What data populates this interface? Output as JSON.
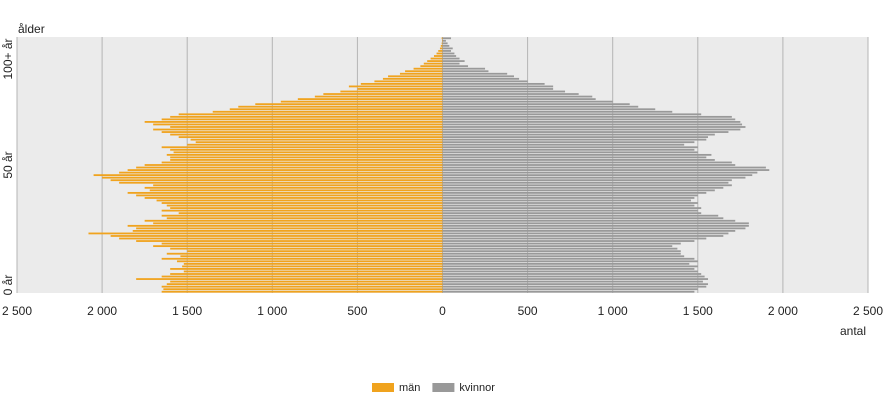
{
  "chart_data": {
    "type": "pyramid",
    "y_label": "ålder",
    "x_label": "antal",
    "categories": [
      "0 år",
      null,
      null,
      null,
      null,
      null,
      null,
      null,
      null,
      null,
      null,
      null,
      null,
      null,
      null,
      null,
      null,
      null,
      null,
      null,
      null,
      null,
      null,
      null,
      null,
      null,
      null,
      null,
      null,
      null,
      null,
      null,
      null,
      null,
      null,
      null,
      null,
      null,
      null,
      null,
      null,
      null,
      null,
      null,
      null,
      null,
      null,
      null,
      null,
      null,
      "50 år",
      null,
      null,
      null,
      null,
      null,
      null,
      null,
      null,
      null,
      null,
      null,
      null,
      null,
      null,
      null,
      null,
      null,
      null,
      null,
      null,
      null,
      null,
      null,
      null,
      null,
      null,
      null,
      null,
      null,
      null,
      null,
      null,
      null,
      null,
      null,
      null,
      null,
      null,
      null,
      null,
      null,
      null,
      null,
      null,
      null,
      null,
      null,
      null,
      null,
      "100+ år"
    ],
    "series": [
      {
        "name": "män",
        "color": "#f0a31e",
        "side": "left",
        "values": [
          1650,
          1640,
          1650,
          1620,
          1600,
          1800,
          1650,
          1600,
          1520,
          1600,
          1530,
          1520,
          1560,
          1650,
          1540,
          1620,
          1500,
          1600,
          1700,
          1650,
          1800,
          1900,
          1950,
          2080,
          1820,
          1800,
          1850,
          1700,
          1750,
          1620,
          1650,
          1550,
          1650,
          1600,
          1620,
          1650,
          1680,
          1750,
          1800,
          1850,
          1720,
          1750,
          1700,
          1900,
          1950,
          2000,
          2050,
          1900,
          1850,
          1800,
          1750,
          1650,
          1600,
          1600,
          1620,
          1580,
          1600,
          1650,
          1500,
          1450,
          1480,
          1550,
          1600,
          1650,
          1700,
          1600,
          1700,
          1750,
          1650,
          1600,
          1550,
          1350,
          1250,
          1200,
          1100,
          950,
          850,
          750,
          700,
          600,
          500,
          550,
          480,
          400,
          350,
          320,
          250,
          220,
          170,
          130,
          110,
          90,
          70,
          50,
          35,
          25,
          15,
          10,
          5,
          3,
          5
        ]
      },
      {
        "name": "kvinnor",
        "color": "#999999",
        "side": "right",
        "values": [
          1480,
          1500,
          1550,
          1560,
          1530,
          1560,
          1540,
          1520,
          1500,
          1480,
          1500,
          1450,
          1500,
          1480,
          1420,
          1400,
          1400,
          1380,
          1350,
          1400,
          1480,
          1550,
          1650,
          1680,
          1720,
          1780,
          1800,
          1800,
          1720,
          1650,
          1620,
          1520,
          1500,
          1520,
          1480,
          1500,
          1460,
          1480,
          1500,
          1550,
          1600,
          1650,
          1700,
          1680,
          1700,
          1780,
          1820,
          1850,
          1920,
          1900,
          1720,
          1700,
          1600,
          1550,
          1580,
          1500,
          1480,
          1500,
          1420,
          1480,
          1550,
          1560,
          1600,
          1680,
          1750,
          1780,
          1760,
          1750,
          1720,
          1700,
          1520,
          1350,
          1250,
          1150,
          1100,
          1000,
          900,
          880,
          800,
          720,
          650,
          650,
          600,
          500,
          450,
          420,
          380,
          270,
          250,
          150,
          100,
          130,
          100,
          80,
          70,
          50,
          60,
          40,
          30,
          20,
          50
        ]
      }
    ],
    "xlim": [
      0,
      2500
    ],
    "xticks": [
      0,
      500,
      {
        "value": 1000,
        "label": "1 000"
      },
      {
        "value": 1500,
        "label": "1 500"
      },
      {
        "value": 2000,
        "label": "2 000"
      },
      {
        "value": 2500,
        "label": "2 500"
      }
    ],
    "grid": true
  }
}
